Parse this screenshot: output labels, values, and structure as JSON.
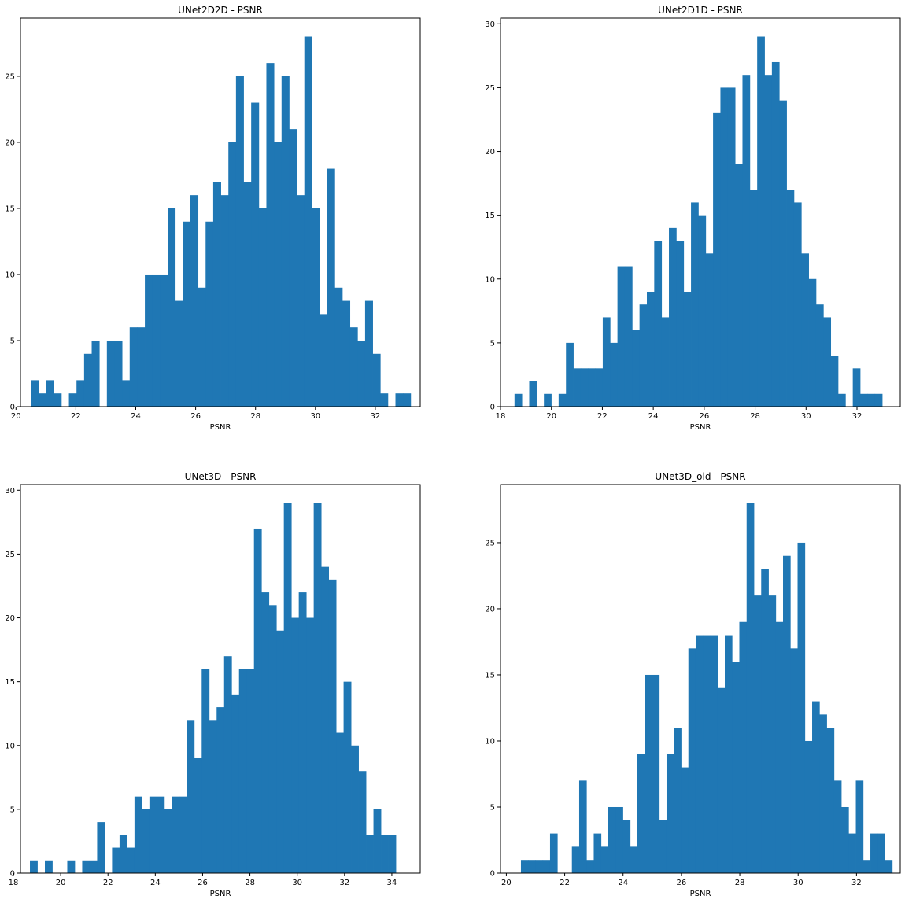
{
  "figure": {
    "background": "#ffffff",
    "bar_color": "#1f77b4"
  },
  "chart_data": [
    {
      "type": "bar",
      "title": "UNet2D2D - PSNR",
      "xlabel": "PSNR",
      "ylabel": "",
      "xlim": [
        20.15,
        33.5
      ],
      "ylim": [
        0,
        29.4
      ],
      "xticks": [
        20,
        22,
        24,
        26,
        28,
        30,
        32
      ],
      "yticks": [
        0,
        5,
        10,
        15,
        20,
        25
      ],
      "bin_start": 20.5,
      "bin_width": 0.2536,
      "values": [
        2,
        1,
        2,
        1,
        0,
        1,
        2,
        4,
        5,
        0,
        5,
        5,
        2,
        6,
        6,
        10,
        10,
        10,
        15,
        8,
        14,
        16,
        9,
        14,
        17,
        16,
        20,
        25,
        17,
        23,
        15,
        26,
        20,
        25,
        21,
        16,
        28,
        15,
        7,
        18,
        9,
        8,
        6,
        5,
        8,
        4,
        1,
        0,
        1,
        1
      ]
    },
    {
      "type": "bar",
      "title": "UNet2D1D - PSNR",
      "xlabel": "PSNR",
      "ylabel": "",
      "xlim": [
        18.0,
        33.7
      ],
      "ylim": [
        0,
        30.45
      ],
      "xticks": [
        18,
        20,
        22,
        24,
        26,
        28,
        30,
        32
      ],
      "yticks": [
        0,
        5,
        10,
        15,
        20,
        25,
        30
      ],
      "bin_start": 18.55,
      "bin_width": 0.2888,
      "values": [
        1,
        0,
        2,
        0,
        1,
        0,
        1,
        5,
        3,
        3,
        3,
        3,
        7,
        5,
        11,
        11,
        6,
        8,
        9,
        13,
        7,
        14,
        13,
        9,
        16,
        15,
        12,
        23,
        25,
        25,
        19,
        26,
        17,
        29,
        26,
        27,
        24,
        17,
        16,
        12,
        10,
        8,
        7,
        4,
        1,
        0,
        3,
        1,
        1,
        1
      ]
    },
    {
      "type": "bar",
      "title": "UNet3D - PSNR",
      "xlabel": "PSNR",
      "ylabel": "",
      "xlim": [
        18.3,
        35.2
      ],
      "ylim": [
        0,
        30.45
      ],
      "xticks": [
        18,
        20,
        22,
        24,
        26,
        28,
        30,
        32,
        34
      ],
      "yticks": [
        0,
        5,
        10,
        15,
        20,
        25,
        30
      ],
      "bin_start": 18.7,
      "bin_width": 0.3157,
      "values": [
        1,
        0,
        1,
        0,
        0,
        1,
        0,
        1,
        1,
        4,
        0,
        2,
        3,
        2,
        6,
        5,
        6,
        6,
        5,
        6,
        6,
        12,
        9,
        16,
        12,
        13,
        17,
        14,
        16,
        16,
        27,
        22,
        21,
        19,
        29,
        20,
        22,
        20,
        29,
        24,
        23,
        11,
        15,
        10,
        8,
        3,
        5,
        3,
        3,
        0
      ]
    },
    {
      "type": "bar",
      "title": "UNet3D_old - PSNR",
      "xlabel": "PSNR",
      "ylabel": "",
      "xlim": [
        19.8,
        33.5
      ],
      "ylim": [
        0,
        29.4
      ],
      "xticks": [
        20,
        22,
        24,
        26,
        28,
        30,
        32
      ],
      "yticks": [
        0,
        5,
        10,
        15,
        20,
        25
      ],
      "bin_start": 20.5,
      "bin_width": 0.2495,
      "values": [
        1,
        1,
        1,
        1,
        3,
        0,
        0,
        2,
        7,
        1,
        3,
        2,
        5,
        5,
        4,
        2,
        9,
        15,
        15,
        4,
        9,
        11,
        8,
        17,
        18,
        18,
        18,
        14,
        18,
        16,
        19,
        28,
        21,
        23,
        21,
        19,
        24,
        17,
        25,
        10,
        13,
        12,
        11,
        7,
        5,
        3,
        7,
        1,
        3,
        3,
        1
      ]
    }
  ]
}
